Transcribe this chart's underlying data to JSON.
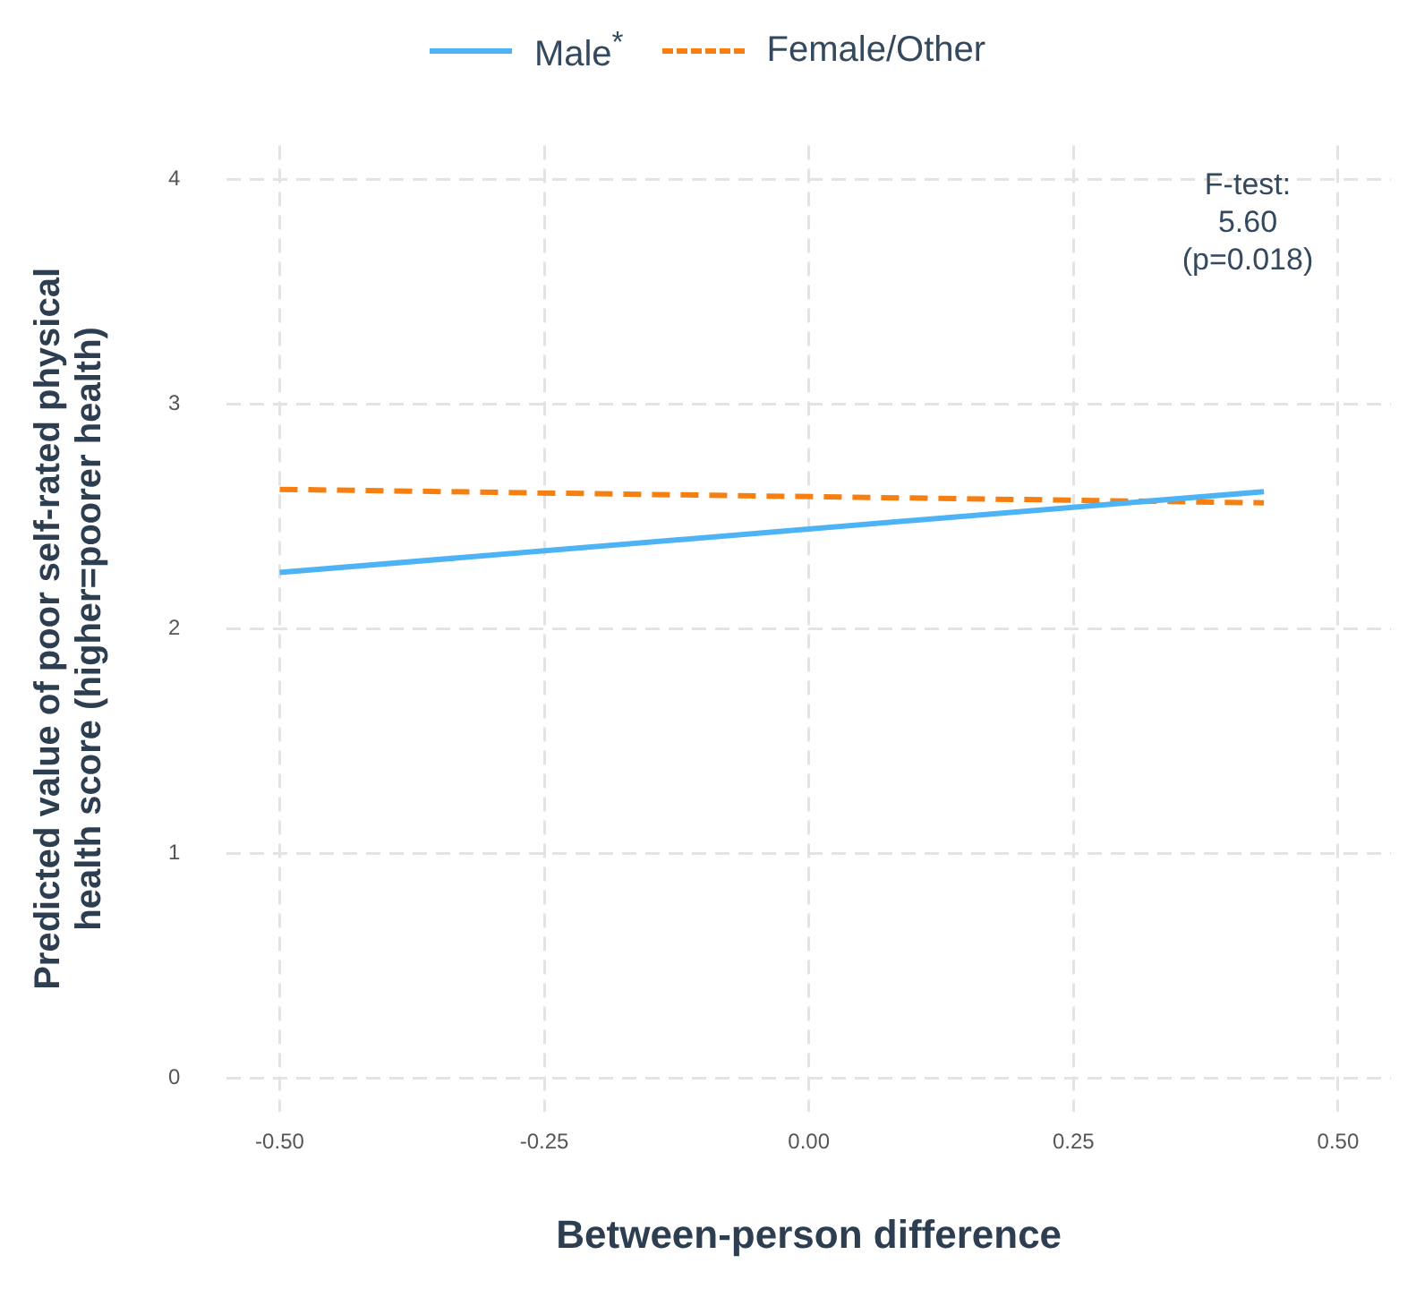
{
  "chart_data": {
    "type": "line",
    "xlabel": "Between-person difference",
    "ylabel": "Predicted value of poor self-rated physical health score (higher=poorer health)",
    "annotations": [
      "F-test:\n5.60\n(p=0.018)"
    ],
    "series": [
      {
        "name": "Male$^{*}$",
        "color": "#4db3f5",
        "line_style": "solid",
        "values": [
          2.25,
          2.61
        ]
      },
      {
        "name": "Female/Other",
        "color": "#f77f0f",
        "line_style": "dashed",
        "values": [
          2.62,
          2.56
        ]
      }
    ],
    "x": [
      -0.5,
      0.43
    ],
    "xlim": [
      -0.55,
      0.55
    ],
    "ylim": [
      -0.15,
      4.15
    ],
    "xticks": [
      {
        "value": -0.5,
        "label": "-0.50"
      },
      {
        "value": -0.25,
        "label": "-0.25"
      },
      {
        "value": 0,
        "label": "0.00"
      },
      {
        "value": 0.25,
        "label": "0.25"
      },
      {
        "value": 0.5,
        "label": "0.50"
      }
    ],
    "yticks": [
      0,
      1,
      2,
      3,
      4
    ],
    "grid": true,
    "legend": "top",
    "marker": "none"
  }
}
